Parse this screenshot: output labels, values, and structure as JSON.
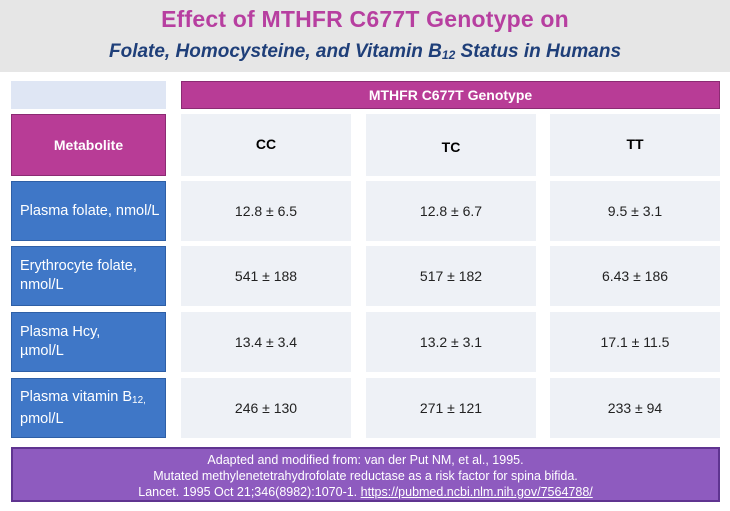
{
  "title": {
    "line1": "Effect of MTHFR C677T Genotype on",
    "line2_prefix": "Folate, Homocysteine, and Vitamin B",
    "line2_sub": "12",
    "line2_suffix": " Status in Humans"
  },
  "table": {
    "group_header": "MTHFR C677T Genotype",
    "metabolite_header": "Metabolite",
    "columns": [
      "CC",
      "TC",
      "TT"
    ],
    "rows": [
      {
        "label": "Plasma folate, nmol/L",
        "values": [
          "12.8 ± 6.5",
          "12.8 ± 6.7",
          "9.5 ± 3.1"
        ]
      },
      {
        "label": "Erythrocyte folate, nmol/L",
        "values": [
          "541 ± 188",
          "517 ± 182",
          "6.43 ± 186"
        ]
      },
      {
        "label_prefix": "Plasma Hcy,",
        "label_unit": "µmol/L",
        "values": [
          "13.4 ± 3.4",
          "13.2 ± 3.1",
          "17.1 ± 11.5"
        ]
      },
      {
        "label_prefix": "Plasma vitamin B",
        "label_sub": "12,",
        "label_unit": "pmol/L",
        "values": [
          "246 ± 130",
          "271 ± 121",
          "233 ± 94"
        ]
      }
    ]
  },
  "footer": {
    "line1": "Adapted and modified from: van der Put NM, et al., 1995.",
    "line2": "Mutated methylenetetrahydrofolate reductase as a risk factor for spina bifida.",
    "line3_text": "Lancet. 1995 Oct 21;346(8982):1070-1. ",
    "link_text": "https://pubmed.ncbi.nlm.nih.gov/7564788/"
  },
  "colors": {
    "title_magenta": "#b73fa0",
    "title_navy": "#1f3f79",
    "header_magenta": "#b83c96",
    "row_blue": "#3f77c7",
    "footer_purple": "#8e5bbf"
  }
}
